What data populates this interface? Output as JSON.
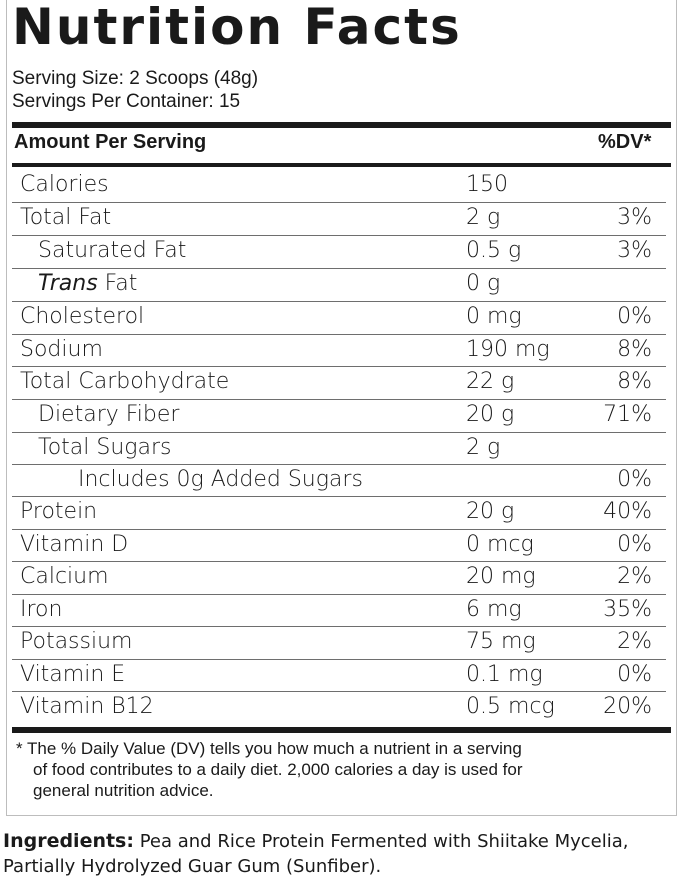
{
  "title": "Nutrition Facts",
  "serving_size": "Serving Size: 2 Scoops (48g)",
  "servings_per_container": "Servings Per Container: 15",
  "header": {
    "left": "Amount Per Serving",
    "right": "%DV*"
  },
  "rows": [
    {
      "name": "Calories",
      "amount": "150",
      "dv": ""
    },
    {
      "name": "Total Fat",
      "amount": "2 g",
      "dv": "3%"
    },
    {
      "name": "Saturated Fat",
      "amount": "0.5 g",
      "dv": "3%"
    },
    {
      "name_italic": "Trans",
      "name_rest": " Fat",
      "amount": "0 g",
      "dv": ""
    },
    {
      "name": "Cholesterol",
      "amount": "0 mg",
      "dv": "0%"
    },
    {
      "name": "Sodium",
      "amount": "190 mg",
      "dv": "8%"
    },
    {
      "name": "Total Carbohydrate",
      "amount": "22 g",
      "dv": "8%"
    },
    {
      "name": "Dietary Fiber",
      "amount": "20 g",
      "dv": "71%"
    },
    {
      "name": "Total Sugars",
      "amount": "2 g",
      "dv": ""
    },
    {
      "name": "Includes 0g Added Sugars",
      "amount": "",
      "dv": "0%"
    },
    {
      "name": "Protein",
      "amount": "20 g",
      "dv": "40%"
    },
    {
      "name": "Vitamin D",
      "amount": "0 mcg",
      "dv": "0%"
    },
    {
      "name": "Calcium",
      "amount": "20 mg",
      "dv": "2%"
    },
    {
      "name": "Iron",
      "amount": "6 mg",
      "dv": "35%"
    },
    {
      "name": "Potassium",
      "amount": "75 mg",
      "dv": "2%"
    },
    {
      "name": "Vitamin E",
      "amount": "0.1 mg",
      "dv": "0%"
    },
    {
      "name": "Vitamin B12",
      "amount": "0.5 mcg",
      "dv": "20%"
    }
  ],
  "footnote": {
    "line1": "* The % Daily Value (DV) tells you how much a nutrient in a serving",
    "line2": "of food contributes to a daily diet. 2,000 calories a day is used for",
    "line3": "general nutrition advice."
  },
  "ingredients": {
    "label": "Ingredients:",
    "text": " Pea and Rice Protein Fermented with Shiitake Mycelia, Partially Hydrolyzed Guar Gum (Sunfiber)."
  }
}
